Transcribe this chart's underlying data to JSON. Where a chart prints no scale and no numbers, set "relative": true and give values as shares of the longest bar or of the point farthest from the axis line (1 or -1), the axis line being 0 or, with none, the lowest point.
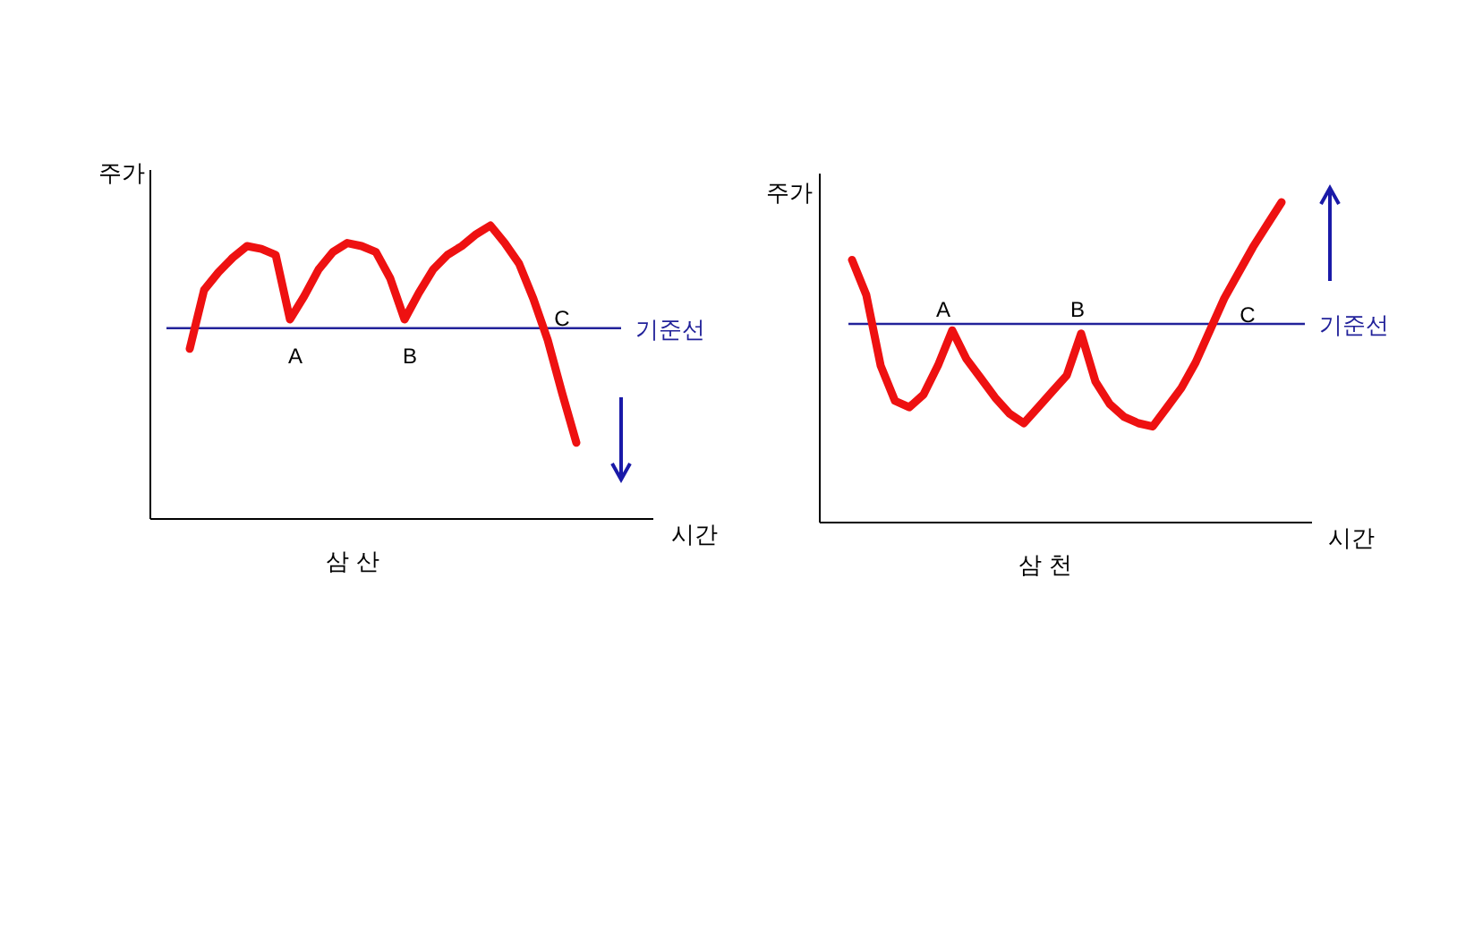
{
  "chart_data": [
    {
      "type": "line",
      "relative": true,
      "title": "삼 산",
      "xlabel": "시간",
      "ylabel": "주가",
      "categories": [
        null,
        null,
        null,
        null,
        null,
        null,
        null,
        null,
        null,
        null,
        null,
        null,
        null,
        null,
        null,
        null,
        null,
        null,
        null,
        null,
        null,
        null,
        null,
        null,
        null,
        null,
        null,
        null
      ],
      "series": [
        {
          "color": "#ee1111",
          "values": [
            0.58,
            0.78,
            0.84,
            0.89,
            0.93,
            0.92,
            0.9,
            0.68,
            0.76,
            0.85,
            0.91,
            0.94,
            0.93,
            0.91,
            0.82,
            0.68,
            0.77,
            0.85,
            0.9,
            0.93,
            0.97,
            1,
            0.94,
            0.87,
            0.75,
            0.61,
            0.43,
            0.26
          ]
        }
      ],
      "ref_lines": [
        {
          "axis": "y",
          "value": 0.65,
          "label": "기준선",
          "color": "#22229a"
        }
      ],
      "annotations": [
        "A",
        "B",
        "C"
      ]
    },
    {
      "type": "line",
      "relative": true,
      "title": "삼 천",
      "xlabel": "시간",
      "ylabel": "주가",
      "categories": [
        null,
        null,
        null,
        null,
        null,
        null,
        null,
        null,
        null,
        null,
        null,
        null,
        null,
        null,
        null,
        null,
        null,
        null,
        null,
        null,
        null,
        null,
        null,
        null,
        null,
        null,
        null,
        null,
        null,
        null,
        null
      ],
      "series": [
        {
          "color": "#ee1111",
          "values": [
            0.82,
            0.71,
            0.49,
            0.38,
            0.36,
            0.4,
            0.49,
            0.6,
            0.51,
            0.45,
            0.39,
            0.34,
            0.31,
            0.36,
            0.41,
            0.46,
            0.59,
            0.44,
            0.37,
            0.33,
            0.31,
            0.3,
            0.36,
            0.42,
            0.5,
            0.6,
            0.7,
            0.78,
            0.86,
            0.93,
            1
          ]
        }
      ],
      "ref_lines": [
        {
          "axis": "y",
          "value": 0.62,
          "label": "기준선",
          "color": "#22229a"
        }
      ],
      "annotations": [
        "A",
        "B",
        "C"
      ]
    }
  ]
}
